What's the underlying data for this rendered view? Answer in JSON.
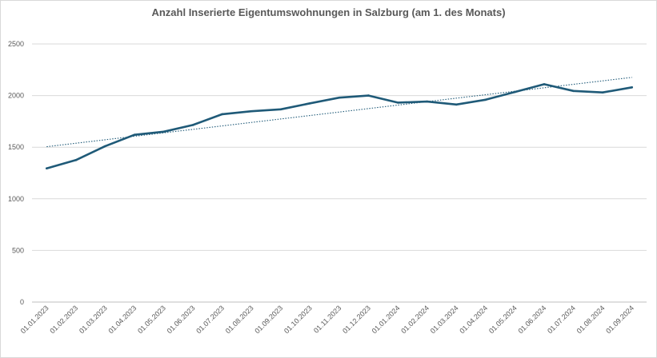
{
  "chart_data": {
    "type": "line",
    "title": "Anzahl Inserierte Eigentumswohnungen in Salzburg (am 1. des Monats)",
    "xlabel": "",
    "ylabel": "",
    "ylim": [
      0,
      2500
    ],
    "yticks": [
      0,
      500,
      1000,
      1500,
      2000,
      2500
    ],
    "grid": "horizontal",
    "legend": "none",
    "categories": [
      "01.01.2023",
      "01.02.2023",
      "01.03.2023",
      "01.04.2023",
      "01.05.2023",
      "01.06.2023",
      "01.07.2023",
      "01.08.2023",
      "01.09.2023",
      "01.10.2023",
      "01.11.2023",
      "01.12.2023",
      "01.01.2024",
      "01.02.2024",
      "01.03.2024",
      "01.04.2024",
      "01.05.2024",
      "01.06.2024",
      "01.07.2024",
      "01.08.2024",
      "01.09.2024"
    ],
    "series": [
      {
        "values": [
          1295,
          1375,
          1510,
          1620,
          1650,
          1715,
          1820,
          1848,
          1867,
          1925,
          1980,
          2000,
          1932,
          1942,
          1913,
          1960,
          2035,
          2110,
          2045,
          2030,
          2080
        ],
        "color": "#1f5a78"
      }
    ],
    "trendline": {
      "type": "linear",
      "color": "#1f5a78",
      "style": "dotted"
    }
  }
}
